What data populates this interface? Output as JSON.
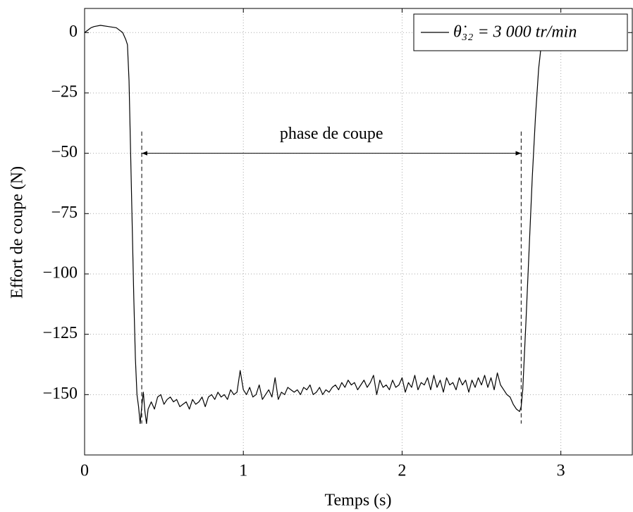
{
  "chart_data": {
    "type": "line",
    "xlabel": "Temps (s)",
    "ylabel": "Effort de coupe (N)",
    "x": [
      0,
      0.02,
      0.04,
      0.06,
      0.1,
      0.15,
      0.2,
      0.24,
      0.26,
      0.27,
      0.28,
      0.29,
      0.3,
      0.31,
      0.32,
      0.33,
      0.34,
      0.35,
      0.36,
      0.37,
      0.38,
      0.39,
      0.4,
      0.42,
      0.44,
      0.46,
      0.48,
      0.5,
      0.52,
      0.54,
      0.56,
      0.58,
      0.6,
      0.62,
      0.64,
      0.66,
      0.68,
      0.7,
      0.72,
      0.74,
      0.76,
      0.78,
      0.8,
      0.82,
      0.84,
      0.86,
      0.88,
      0.9,
      0.92,
      0.94,
      0.96,
      0.98,
      1.0,
      1.02,
      1.04,
      1.06,
      1.08,
      1.1,
      1.12,
      1.14,
      1.16,
      1.18,
      1.2,
      1.22,
      1.24,
      1.26,
      1.28,
      1.3,
      1.32,
      1.34,
      1.36,
      1.38,
      1.4,
      1.42,
      1.44,
      1.46,
      1.48,
      1.5,
      1.52,
      1.54,
      1.56,
      1.58,
      1.6,
      1.62,
      1.64,
      1.66,
      1.68,
      1.7,
      1.72,
      1.74,
      1.76,
      1.78,
      1.8,
      1.82,
      1.84,
      1.86,
      1.88,
      1.9,
      1.92,
      1.94,
      1.96,
      1.98,
      2.0,
      2.02,
      2.04,
      2.06,
      2.08,
      2.1,
      2.12,
      2.14,
      2.16,
      2.18,
      2.2,
      2.22,
      2.24,
      2.26,
      2.28,
      2.3,
      2.32,
      2.34,
      2.36,
      2.38,
      2.4,
      2.42,
      2.44,
      2.46,
      2.48,
      2.5,
      2.52,
      2.54,
      2.56,
      2.58,
      2.6,
      2.62,
      2.64,
      2.66,
      2.68,
      2.7,
      2.72,
      2.74,
      2.75,
      2.76,
      2.78,
      2.8,
      2.82,
      2.84,
      2.86,
      2.88
    ],
    "series": [
      {
        "name": "θ̇₃₂ = 3 000 tr/min",
        "color": "#000000",
        "values": [
          0,
          1,
          2,
          2.5,
          3,
          2.5,
          2,
          0,
          -3,
          -5,
          -20,
          -50,
          -80,
          -110,
          -135,
          -150,
          -155,
          -162,
          -155,
          -149,
          -157,
          -162,
          -156,
          -153,
          -156,
          -151,
          -150,
          -154,
          -152,
          -151,
          -153,
          -152,
          -155,
          -154,
          -153,
          -156,
          -152,
          -154,
          -153,
          -151,
          -155,
          -151,
          -150,
          -152,
          -149,
          -151,
          -150,
          -152,
          -148,
          -150,
          -149,
          -140,
          -148,
          -150,
          -147,
          -151,
          -150,
          -146,
          -152,
          -150,
          -148,
          -151,
          -143,
          -152,
          -149,
          -150,
          -147,
          -148,
          -149,
          -148,
          -150,
          -147,
          -148,
          -146,
          -150,
          -149,
          -147,
          -150,
          -148,
          -149,
          -147,
          -146,
          -148,
          -145,
          -147,
          -144,
          -146,
          -145,
          -148,
          -146,
          -144,
          -147,
          -145,
          -142,
          -150,
          -144,
          -147,
          -146,
          -148,
          -144,
          -147,
          -146,
          -143,
          -149,
          -145,
          -147,
          -142,
          -148,
          -145,
          -146,
          -143,
          -148,
          -142,
          -147,
          -144,
          -149,
          -143,
          -146,
          -145,
          -148,
          -143,
          -146,
          -144,
          -149,
          -144,
          -147,
          -143,
          -146,
          -142,
          -147,
          -143,
          -148,
          -141,
          -146,
          -148,
          -150,
          -151,
          -154,
          -156,
          -157,
          -155,
          -148,
          -120,
          -90,
          -60,
          -35,
          -15,
          -3
        ]
      }
    ],
    "xlim": [
      0,
      3.45
    ],
    "ylim": [
      -175,
      10
    ],
    "xticks": [
      0,
      1,
      2,
      3
    ],
    "yticks": [
      0,
      {
        "value": -25,
        "label": "−25"
      },
      {
        "value": -50,
        "label": "−50"
      },
      {
        "value": -75,
        "label": "−75"
      },
      {
        "value": -100,
        "label": "−100"
      },
      {
        "value": -125,
        "label": "−125"
      },
      {
        "value": -150,
        "label": "−150"
      }
    ],
    "grid": true,
    "legend": "upper right",
    "annotation": {
      "text": "phase de coupe",
      "x": [
        0.36,
        2.75
      ],
      "y": -50,
      "vline_y": [
        -41,
        -162
      ]
    }
  }
}
